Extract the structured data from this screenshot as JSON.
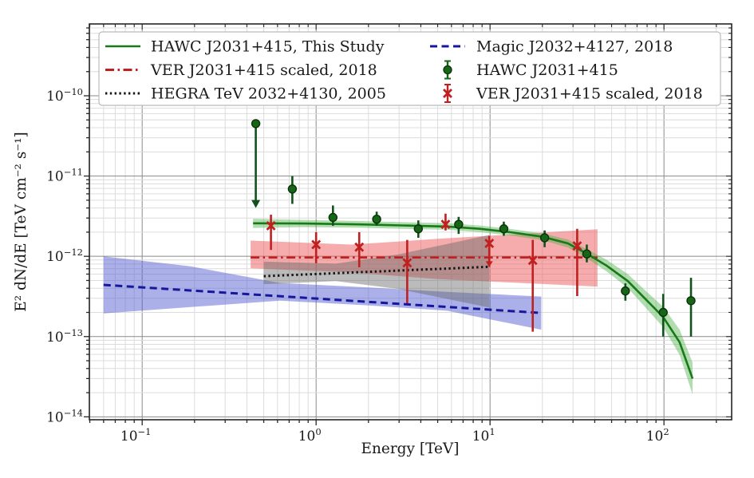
{
  "figure": {
    "kind": "spectral-energy-distribution-plot",
    "background": "#ffffff"
  },
  "axes": {
    "xlabel": "Energy [TeV]",
    "ylabel": "E² dN/dE [TeV cm⁻² s⁻¹]",
    "xlim": [
      0.0497,
      245
    ],
    "ylim": [
      9.2e-15,
      7.85e-10
    ],
    "x_scale": "log",
    "y_scale": "log",
    "grid": {
      "major": true,
      "minor": true,
      "major_color": "#8a8a8a",
      "minor_color": "#dcdcdc"
    },
    "x_ticks": [
      {
        "base": "10",
        "exp": "−1",
        "value": 0.1
      },
      {
        "base": "10",
        "exp": "0",
        "value": 1
      },
      {
        "base": "10",
        "exp": "1",
        "value": 10
      },
      {
        "base": "10",
        "exp": "2",
        "value": 100
      }
    ],
    "y_ticks": [
      {
        "base": "10",
        "exp": "−10",
        "value": 1e-10
      },
      {
        "base": "10",
        "exp": "−11",
        "value": 1e-11
      },
      {
        "base": "10",
        "exp": "−12",
        "value": 1e-12
      },
      {
        "base": "10",
        "exp": "−13",
        "value": 1e-13
      },
      {
        "base": "10",
        "exp": "−14",
        "value": 1e-14
      }
    ]
  },
  "legend": {
    "entries": [
      {
        "label": "HAWC J2031+415, This Study",
        "swatch": "line-solid",
        "color": "#177a17"
      },
      {
        "label": "VER J2031+415 scaled, 2018",
        "swatch": "line-dashdot",
        "color": "#c02020"
      },
      {
        "label": "HEGRA TeV 2032+4130, 2005",
        "swatch": "line-dotted",
        "color": "#141414"
      },
      {
        "label": "Magic J2032+4127, 2018",
        "swatch": "line-dashed",
        "color": "#17179b"
      },
      {
        "label": "HAWC J2031+415",
        "swatch": "marker-circle-errorbar",
        "color": "#176617"
      },
      {
        "label": "VER J2031+415 scaled, 2018",
        "swatch": "marker-x-errorbar",
        "color": "#c02020"
      }
    ]
  },
  "chart_data": {
    "type": "line",
    "x_units": "TeV",
    "y_units": "TeV cm^-2 s^-1",
    "models": [
      {
        "name": "Magic J2032+4127, 2018",
        "color": "#17179b",
        "dash": "dashed",
        "width": 3,
        "x": [
          0.06,
          19.7
        ],
        "y": [
          4.4e-13,
          1.97e-13
        ],
        "band_color": "rgba(80,90,210,0.48)",
        "band": {
          "x": [
            0.06,
            0.19,
            0.62,
            1.97,
            5.66,
            19.7
          ],
          "top": [
            1e-12,
            7.5e-13,
            4.65e-13,
            4.1e-13,
            3.6e-13,
            3.15e-13
          ],
          "bottom": [
            1.94e-13,
            2.33e-13,
            2.8e-13,
            2.45e-13,
            2.1e-13,
            1.22e-13
          ]
        }
      },
      {
        "name": "VER J2031+415 scaled, 2018",
        "color": "#c02020",
        "dash": "dashdot",
        "width": 2.6,
        "x": [
          0.42,
          41.5
        ],
        "y": [
          9.65e-13,
          9.65e-13
        ],
        "band_color": "rgba(238,90,90,0.5)",
        "band": {
          "x": [
            0.42,
            1.6,
            5.0,
            41.5
          ],
          "top": [
            1.57e-12,
            1.4e-12,
            1.65e-12,
            2.17e-12
          ],
          "bottom": [
            7.1e-13,
            6.3e-13,
            5.2e-13,
            4.2e-13
          ]
        }
      },
      {
        "name": "HEGRA TeV 2032+4130, 2005",
        "color": "#141414",
        "dash": "dotted",
        "width": 3,
        "x": [
          0.5,
          10
        ],
        "y": [
          5.65e-13,
          7.4e-13
        ],
        "band_color": "rgba(105,105,105,0.45)",
        "band": {
          "x": [
            0.5,
            1.3,
            3.0,
            9.9
          ],
          "top": [
            8.6e-13,
            8.1e-13,
            1.06e-12,
            1.84e-12
          ],
          "bottom": [
            4.5e-13,
            4.9e-13,
            3.9e-13,
            2.3e-13
          ]
        }
      },
      {
        "name": "HAWC J2031+415, This Study",
        "color": "#177a17",
        "dash": "solid",
        "width": 2.6,
        "x": [
          0.434,
          0.85,
          1.8,
          3.7,
          5.7,
          8.7,
          13,
          20,
          28,
          36,
          47,
          62,
          80,
          99,
          123,
          146
        ],
        "y": [
          2.58e-12,
          2.56e-12,
          2.5e-12,
          2.4e-12,
          2.35e-12,
          2.2e-12,
          2e-12,
          1.75e-12,
          1.45e-12,
          1.08e-12,
          7.6e-13,
          4.9e-13,
          2.8e-13,
          1.75e-13,
          8.5e-14,
          3e-14
        ],
        "band_color": "rgba(70,175,70,0.42)",
        "band": {
          "x": [
            0.434,
            0.85,
            1.8,
            3.7,
            5.7,
            8.7,
            13,
            20,
            28,
            36,
            47,
            62,
            80,
            99,
            123,
            146
          ],
          "top": [
            2.94e-12,
            2.84e-12,
            2.75e-12,
            2.64e-12,
            2.59e-12,
            2.42e-12,
            2.2e-12,
            1.93e-12,
            1.62e-12,
            1.23e-12,
            9e-13,
            6e-13,
            3.58e-13,
            2.35e-13,
            1.22e-13,
            4.74e-14
          ],
          "bottom": [
            2.26e-12,
            2.31e-12,
            2.27e-12,
            2.18e-12,
            2.14e-12,
            2e-12,
            1.82e-12,
            1.59e-12,
            1.29e-12,
            9.47e-13,
            6.44e-13,
            4.02e-13,
            2.19e-13,
            1.31e-13,
            5.9e-14,
            1.9e-14
          ]
        }
      }
    ],
    "points": [
      {
        "name": "HAWC J2031+415",
        "marker": "circle",
        "color": "#176617",
        "edge": "#0a330a",
        "err_color": "#11511b",
        "data": [
          {
            "E": 0.45,
            "F": 4.5e-11,
            "upper_limit_to": 4e-12
          },
          {
            "E": 0.73,
            "F": 6.9e-12,
            "lo": 4.5e-12,
            "hi": 1e-11
          },
          {
            "E": 1.25,
            "F": 3.05e-12,
            "lo": 2.4e-12,
            "hi": 4.3e-12
          },
          {
            "E": 2.23,
            "F": 2.9e-12,
            "lo": 2.4e-12,
            "hi": 3.6e-12
          },
          {
            "E": 3.87,
            "F": 2.2e-12,
            "lo": 1.7e-12,
            "hi": 2.8e-12
          },
          {
            "E": 6.6,
            "F": 2.5e-12,
            "lo": 1.9e-12,
            "hi": 3.1e-12
          },
          {
            "E": 12.0,
            "F": 2.2e-12,
            "lo": 1.8e-12,
            "hi": 2.7e-12
          },
          {
            "E": 20.6,
            "F": 1.7e-12,
            "lo": 1.3e-12,
            "hi": 2.1e-12
          },
          {
            "E": 36.0,
            "F": 1.07e-12,
            "lo": 8.4e-13,
            "hi": 1.4e-12
          },
          {
            "E": 60.0,
            "F": 3.7e-13,
            "lo": 2.8e-13,
            "hi": 4.6e-13
          },
          {
            "E": 99.0,
            "F": 2e-13,
            "lo": 1e-13,
            "hi": 3.4e-13
          },
          {
            "E": 143.0,
            "F": 2.8e-13,
            "lo": 1e-13,
            "hi": 5.4e-13
          }
        ]
      },
      {
        "name": "VER J2031+415 scaled, 2018",
        "marker": "x",
        "color": "#c02020",
        "edge": "#c02020",
        "err_color": "#c02020",
        "data": [
          {
            "E": 0.55,
            "F": 2.4e-12,
            "lo": 1.2e-12,
            "hi": 3.3e-12
          },
          {
            "E": 1.0,
            "F": 1.4e-12,
            "lo": 8.2e-13,
            "hi": 2e-12
          },
          {
            "E": 1.77,
            "F": 1.3e-12,
            "lo": 7.3e-13,
            "hi": 2e-12
          },
          {
            "E": 3.34,
            "F": 8.3e-13,
            "lo": 2.6e-13,
            "hi": 1.6e-12
          },
          {
            "E": 5.55,
            "F": 2.5e-12,
            "lo": 2.1e-12,
            "hi": 3.4e-12
          },
          {
            "E": 9.9,
            "F": 1.45e-12,
            "lo": 7.4e-13,
            "hi": 1.8e-12,
            "arrow_down": true
          },
          {
            "E": 17.6,
            "F": 8.9e-13,
            "lo": 1.15e-13,
            "hi": 1.6e-12
          },
          {
            "E": 31.7,
            "F": 1.35e-12,
            "lo": 3.2e-13,
            "hi": 2.2e-12
          }
        ]
      }
    ]
  }
}
